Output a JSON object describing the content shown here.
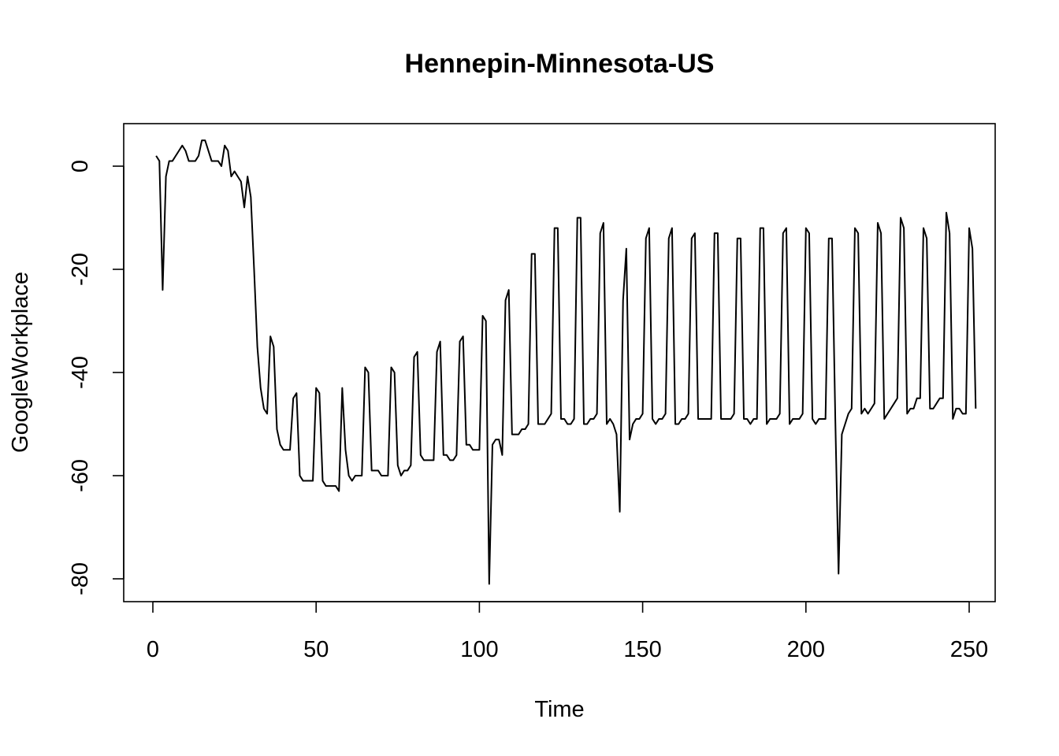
{
  "chart_data": {
    "type": "line",
    "title": "Hennepin-Minnesota-US",
    "xlabel": "Time",
    "ylabel": "GoogleWorkplace",
    "xlim": [
      1,
      248
    ],
    "ylim": [
      -81,
      5
    ],
    "x_ticks": [
      0,
      50,
      100,
      150,
      200,
      250
    ],
    "y_ticks": [
      0,
      -20,
      -40,
      -60,
      -80
    ],
    "grid": false,
    "legend": "none",
    "series": [
      {
        "color": "#000000",
        "x_start": 1,
        "x_step": 1,
        "values": [
          2,
          1,
          -24,
          -2,
          1,
          1,
          2,
          3,
          4,
          3,
          1,
          1,
          1,
          2,
          5,
          5,
          3,
          1,
          1,
          1,
          0,
          4,
          3,
          -2,
          -1,
          -2,
          -3,
          -8,
          -2,
          -6,
          -20,
          -35,
          -43,
          -47,
          -48,
          -33,
          -35,
          -51,
          -54,
          -55,
          -55,
          -55,
          -45,
          -44,
          -60,
          -61,
          -61,
          -61,
          -61,
          -43,
          -44,
          -61,
          -62,
          -62,
          -62,
          -62,
          -63,
          -43,
          -55,
          -60,
          -61,
          -60,
          -60,
          -60,
          -39,
          -40,
          -59,
          -59,
          -59,
          -60,
          -60,
          -60,
          -39,
          -40,
          -58,
          -60,
          -59,
          -59,
          -58,
          -37,
          -36,
          -56,
          -57,
          -57,
          -57,
          -57,
          -36,
          -34,
          -56,
          -56,
          -57,
          -57,
          -56,
          -34,
          -33,
          -54,
          -54,
          -55,
          -55,
          -55,
          -29,
          -30,
          -81,
          -54,
          -53,
          -53,
          -56,
          -26,
          -24,
          -52,
          -52,
          -52,
          -51,
          -51,
          -50,
          -17,
          -17,
          -50,
          -50,
          -50,
          -49,
          -48,
          -12,
          -12,
          -49,
          -49,
          -50,
          -50,
          -49,
          -10,
          -10,
          -50,
          -50,
          -49,
          -49,
          -48,
          -13,
          -11,
          -50,
          -49,
          -50,
          -52,
          -67,
          -26,
          -16,
          -53,
          -50,
          -49,
          -49,
          -48,
          -14,
          -12,
          -49,
          -50,
          -49,
          -49,
          -48,
          -14,
          -12,
          -50,
          -50,
          -49,
          -49,
          -48,
          -14,
          -13,
          -49,
          -49,
          -49,
          -49,
          -49,
          -13,
          -13,
          -49,
          -49,
          -49,
          -49,
          -48,
          -14,
          -14,
          -49,
          -49,
          -50,
          -49,
          -49,
          -12,
          -12,
          -50,
          -49,
          -49,
          -49,
          -48,
          -13,
          -12,
          -50,
          -49,
          -49,
          -49,
          -48,
          -12,
          -13,
          -49,
          -50,
          -49,
          -49,
          -49,
          -14,
          -14,
          -49,
          -79,
          -52,
          -50,
          -48,
          -47,
          -12,
          -13,
          -48,
          -47,
          -48,
          -47,
          -46,
          -11,
          -13,
          -49,
          -48,
          -47,
          -46,
          -45,
          -10,
          -12,
          -48,
          -47,
          -47,
          -45,
          -45,
          -12,
          -14,
          -47,
          -47,
          -46,
          -45,
          -45,
          -9,
          -13,
          -49,
          -47,
          -47,
          -48,
          -48,
          -12,
          -16,
          -47
        ]
      }
    ]
  }
}
